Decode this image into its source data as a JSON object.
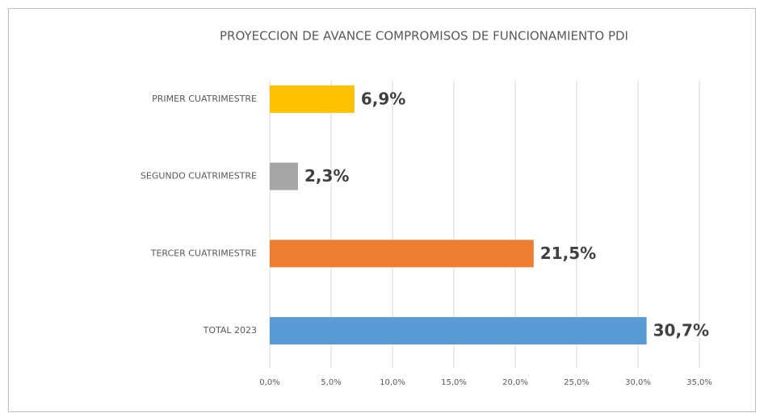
{
  "chart_data": {
    "type": "bar",
    "orientation": "horizontal",
    "title": "PROYECCION DE AVANCE COMPROMISOS DE FUNCIONAMIENTO PDI",
    "categories": [
      "PRIMER CUATRIMESTRE",
      "SEGUNDO CUATRIMESTRE",
      "TERCER CUATRIMESTRE",
      "TOTAL 2023"
    ],
    "values": [
      6.9,
      2.3,
      21.5,
      30.7
    ],
    "value_labels": [
      "6,9%",
      "2,3%",
      "21,5%",
      "30,7%"
    ],
    "colors": [
      "#ffc000",
      "#a5a5a5",
      "#ed7d31",
      "#5b9bd5"
    ],
    "xlim": [
      0,
      35
    ],
    "xticks": [
      {
        "value": 0,
        "label": "0,0%"
      },
      {
        "value": 5,
        "label": "5,0%"
      },
      {
        "value": 10,
        "label": "10,0%"
      },
      {
        "value": 15,
        "label": "15,0%"
      },
      {
        "value": 20,
        "label": "20,0%"
      },
      {
        "value": 25,
        "label": "25,0%"
      },
      {
        "value": 30,
        "label": "30,0%"
      },
      {
        "value": 35,
        "label": "35,0%"
      }
    ],
    "grid": true
  }
}
